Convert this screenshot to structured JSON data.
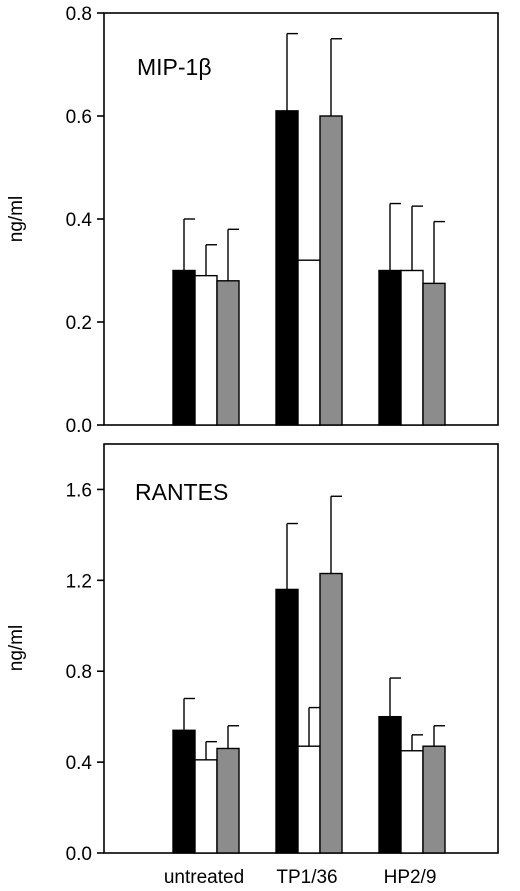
{
  "chart_data": [
    {
      "type": "bar",
      "title": "MIP-1β",
      "ylabel": "ng/ml",
      "xlabel": "",
      "categories": [
        "untreated",
        "TP1/36",
        "HP2/9"
      ],
      "ylim": [
        0,
        0.8
      ],
      "yticks": [
        "0.0",
        "0.2",
        "0.4",
        "0.6",
        "0.8"
      ],
      "ytick_values": [
        0,
        0.2,
        0.4,
        0.6,
        0.8
      ],
      "series": [
        {
          "color": "#000000",
          "values": [
            0.3,
            0.61,
            0.3
          ],
          "errors": [
            0.1,
            0.15,
            0.13
          ]
        },
        {
          "color": "#ffffff",
          "values": [
            0.29,
            0.32,
            0.3
          ],
          "errors": [
            0.06,
            0.0,
            0.125
          ]
        },
        {
          "color": "#8c8c8c",
          "values": [
            0.28,
            0.6,
            0.275
          ],
          "errors": [
            0.1,
            0.15,
            0.12
          ]
        }
      ],
      "grid": false
    },
    {
      "type": "bar",
      "title": "RANTES",
      "ylabel": "ng/ml",
      "xlabel": "",
      "categories": [
        "untreated",
        "TP1/36",
        "HP2/9"
      ],
      "ylim": [
        0,
        1.8
      ],
      "yticks": [
        "0.0",
        "0.4",
        "0.8",
        "1.2",
        "1.6"
      ],
      "ytick_values": [
        0,
        0.4,
        0.8,
        1.2,
        1.6
      ],
      "series": [
        {
          "color": "#000000",
          "values": [
            0.54,
            1.16,
            0.6
          ],
          "errors": [
            0.14,
            0.29,
            0.17
          ]
        },
        {
          "color": "#ffffff",
          "values": [
            0.41,
            0.47,
            0.45
          ],
          "errors": [
            0.08,
            0.17,
            0.07
          ]
        },
        {
          "color": "#8c8c8c",
          "values": [
            0.46,
            1.23,
            0.47
          ],
          "errors": [
            0.1,
            0.34,
            0.09
          ]
        }
      ],
      "grid": false
    }
  ]
}
